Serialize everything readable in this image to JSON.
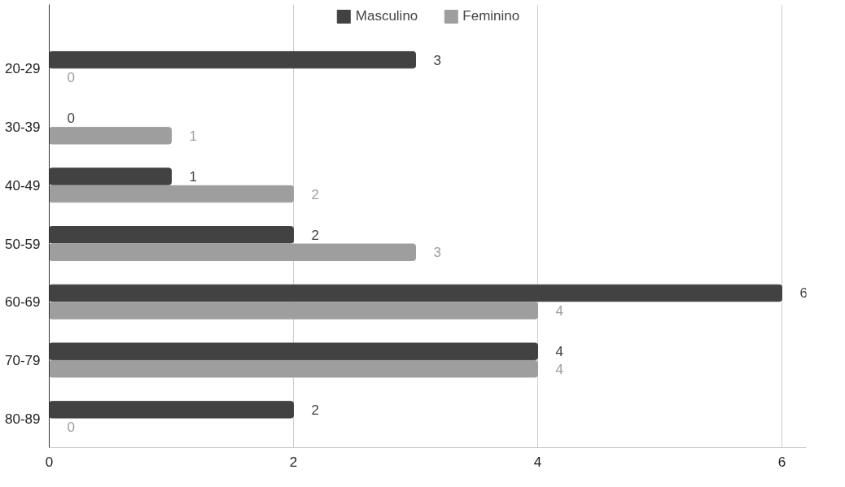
{
  "chart_data": {
    "type": "bar",
    "orientation": "horizontal",
    "categories": [
      "20-29",
      "30-39",
      "40-49",
      "50-59",
      "60-69",
      "70-79",
      "80-89"
    ],
    "series": [
      {
        "name": "Masculino",
        "color": "#424242",
        "values": [
          3,
          0,
          1,
          2,
          6,
          4,
          2
        ]
      },
      {
        "name": "Feminino",
        "color": "#9e9e9e",
        "values": [
          0,
          1,
          2,
          3,
          4,
          4,
          0
        ]
      }
    ],
    "xlim": [
      0,
      6.2
    ],
    "xticks": [
      0,
      2,
      4,
      6
    ],
    "grid": "x",
    "legend": "top",
    "data_labels": true
  }
}
